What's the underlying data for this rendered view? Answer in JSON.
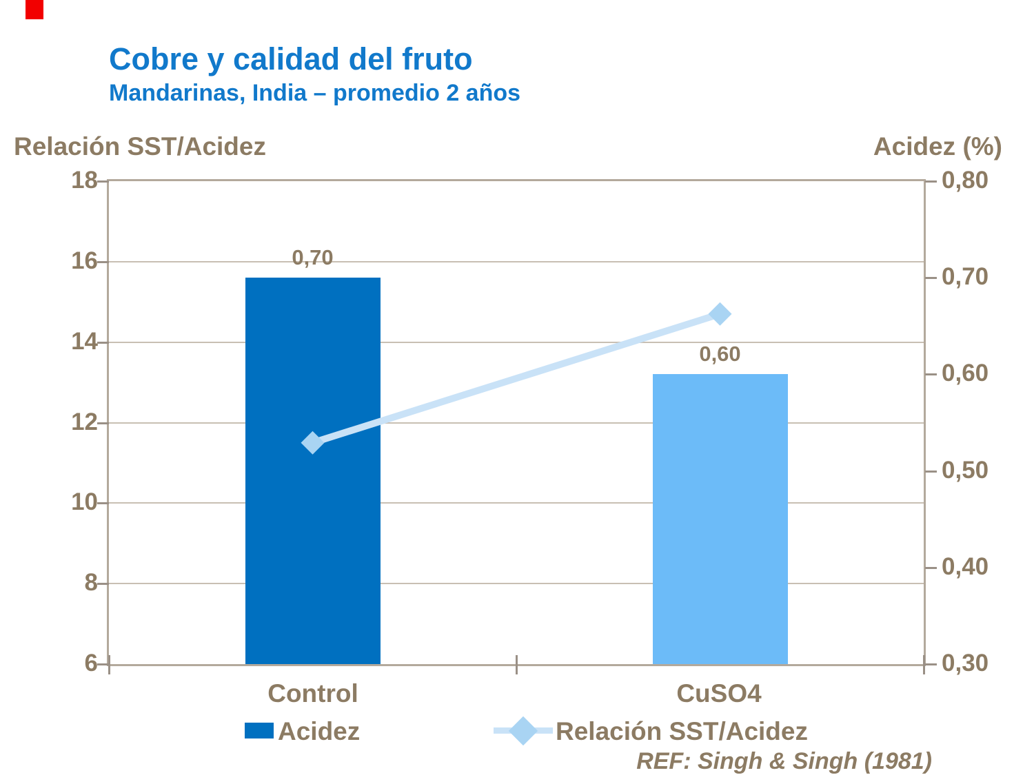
{
  "decor": {
    "red_marker_color": "#F20000"
  },
  "header": {
    "title": "Cobre y calidad del fruto",
    "subtitle": "Mandarinas, India – promedio 2 años",
    "title_color": "#1179CB"
  },
  "footer": {
    "reference": "REF: Singh & Singh (1981)"
  },
  "chart_data": {
    "type": "combo-bar-line",
    "categories": [
      "Control",
      "CuSO4"
    ],
    "series": [
      {
        "name": "Acidez",
        "chart_type": "bar",
        "axis": "right",
        "values": [
          0.7,
          0.6
        ],
        "point_labels": [
          "0,70",
          "0,60"
        ],
        "point_colors": [
          "#0070C0",
          "#6CBBF8"
        ]
      },
      {
        "name": "Relación SST/Acidez",
        "chart_type": "line",
        "axis": "left",
        "values": [
          11.5,
          14.7
        ],
        "marker": "diamond",
        "line_color": "#C9E2F7",
        "marker_color": "#A9D4F3"
      }
    ],
    "left_axis": {
      "label": "Relación SST/Acidez",
      "min": 6,
      "max": 18,
      "tick_step": 2,
      "tick_labels": [
        "18",
        "16",
        "14",
        "12",
        "10",
        "8",
        "6"
      ]
    },
    "right_axis": {
      "label": "Acidez (%)",
      "min": 0.3,
      "max": 0.8,
      "tick_step": 0.1,
      "tick_labels": [
        "0,80",
        "0,70",
        "0,60",
        "0,50",
        "0,40",
        "0,30"
      ]
    },
    "legend": [
      {
        "label": "Acidez",
        "swatch": "bar",
        "color": "#0070C0"
      },
      {
        "label": "Relación SST/Acidez",
        "swatch": "line-diamond",
        "line_color": "#C9E2F7",
        "marker_color": "#A9D4F3"
      }
    ],
    "grid": "horizontal",
    "legend_position": "bottom",
    "text_color": "#8C7B63",
    "frame_color": "#B3A99C"
  }
}
